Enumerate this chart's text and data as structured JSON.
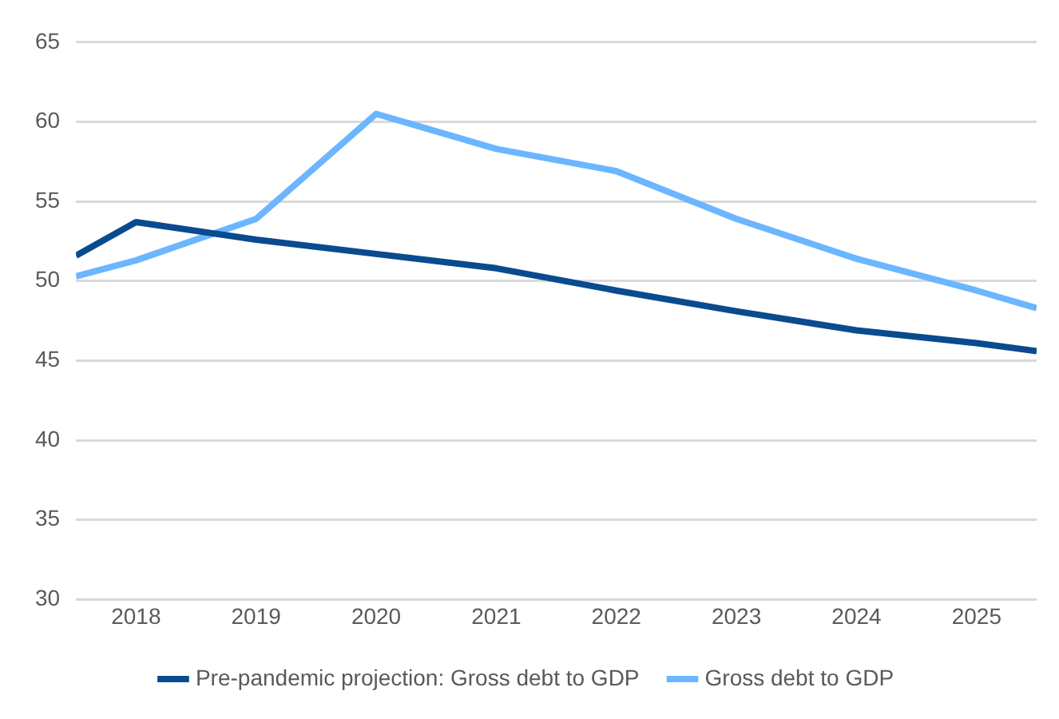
{
  "chart_data": {
    "type": "line",
    "x": [
      2017.5,
      2018,
      2019,
      2020,
      2021,
      2022,
      2023,
      2024,
      2025,
      2025.5
    ],
    "xlim": [
      2017.5,
      2025.5
    ],
    "xticks": [
      2018,
      2019,
      2020,
      2021,
      2022,
      2023,
      2024,
      2025
    ],
    "ylim": [
      30,
      65
    ],
    "yticks": [
      30,
      35,
      40,
      45,
      50,
      55,
      60,
      65
    ],
    "grid": "y",
    "legend": "bottom",
    "marker": "none",
    "line_style": "solid",
    "series": [
      {
        "name": "Pre-pandemic projection: Gross debt to GDP",
        "color": "#0a4a8f",
        "values": [
          51.6,
          53.7,
          52.6,
          51.7,
          50.8,
          49.4,
          48.1,
          46.9,
          46.1,
          45.6
        ]
      },
      {
        "name": "Gross debt to GDP",
        "color": "#6bb6ff",
        "values": [
          50.3,
          51.3,
          53.9,
          60.5,
          58.3,
          56.9,
          53.9,
          51.4,
          49.4,
          48.3
        ]
      }
    ]
  }
}
